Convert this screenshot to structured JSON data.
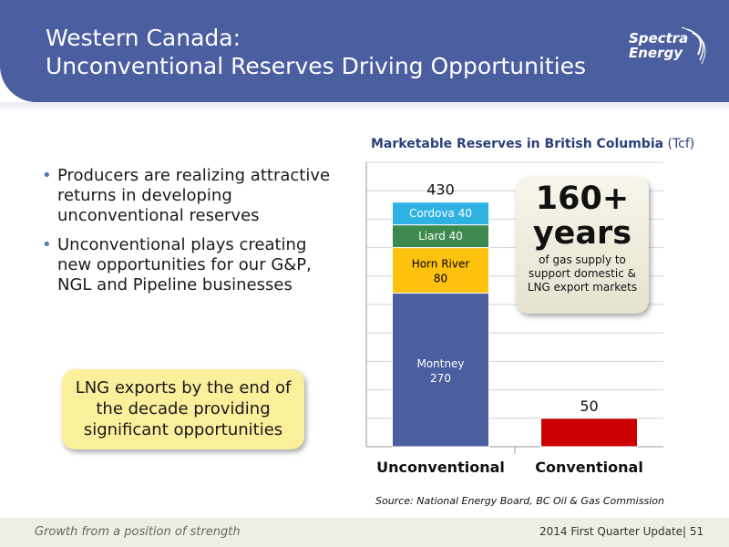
{
  "header": {
    "title_line1": "Western Canada:",
    "title_line2": "Unconventional Reserves Driving Opportunities",
    "logo_line1": "Spectra",
    "logo_line2": "Energy",
    "color": "#4a5ea0"
  },
  "bullets": [
    "Producers are realizing attractive returns in developing unconventional reserves",
    "Unconventional plays creating new opportunities for our G&P, NGL and Pipeline businesses"
  ],
  "callout": "LNG exports by the end of the decade providing significant opportunities",
  "years_callout": {
    "big_line1": "160+",
    "big_line2": "years",
    "small": "of gas supply to support domestic & LNG export markets"
  },
  "source": "Source: National Energy Board, BC Oil & Gas Commission",
  "footer": {
    "tagline": "Growth from a position of strength",
    "right": "2014 First Quarter Update|  51"
  },
  "chart_data": {
    "type": "bar",
    "stacked": true,
    "title": "Marketable Reserves in British Columbia",
    "unit": "(Tcf)",
    "categories": [
      "Unconventional",
      "Conventional"
    ],
    "series": [
      {
        "name": "Montney",
        "values": [
          270,
          0
        ],
        "color": "#4a5ea0",
        "label_color": "#ffffff"
      },
      {
        "name": "Horn River",
        "values": [
          80,
          0
        ],
        "color": "#fcc20e",
        "label_color": "#000000"
      },
      {
        "name": "Liard",
        "values": [
          40,
          0
        ],
        "color": "#3e8a4e",
        "label_color": "#ffffff"
      },
      {
        "name": "Cordova",
        "values": [
          40,
          0
        ],
        "color": "#2eb2e4",
        "label_color": "#ffffff"
      },
      {
        "name": "Conventional",
        "values": [
          0,
          50
        ],
        "color": "#cc0000",
        "label_color": "#000000"
      }
    ],
    "totals": [
      "430",
      "50"
    ],
    "ylim": [
      0,
      500
    ],
    "grid": true
  }
}
